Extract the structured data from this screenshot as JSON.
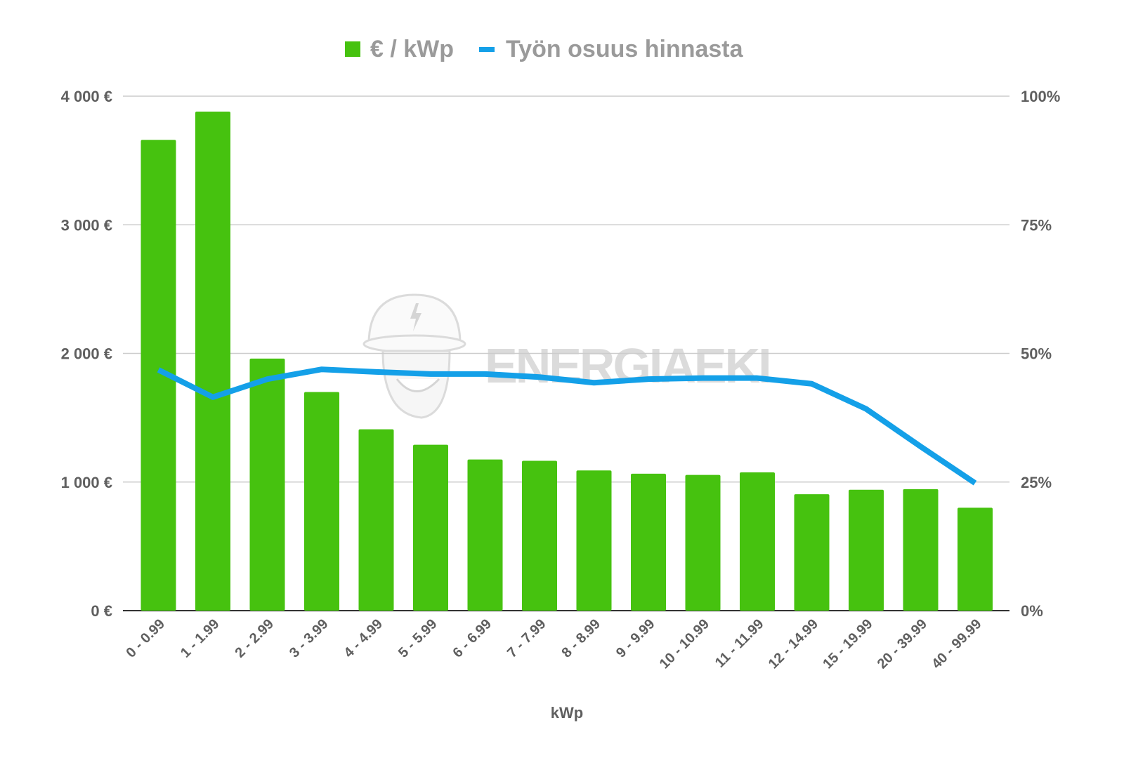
{
  "chart_data": {
    "type": "bar+line",
    "title": "",
    "xlabel": "kWp",
    "ylabel_left": "",
    "ylabel_right": "",
    "categories": [
      "0 - 0.99",
      "1 - 1.99",
      "2 - 2.99",
      "3 - 3.99",
      "4 - 4.99",
      "5 - 5.99",
      "6 - 6.99",
      "7 - 7.99",
      "8 - 8.99",
      "9 - 9.99",
      "10 - 10.99",
      "11 - 11.99",
      "12 - 14.99",
      "15 - 19.99",
      "20 - 39.99",
      "40 - 99.99"
    ],
    "series": [
      {
        "name": "€ / kWp",
        "type": "bar",
        "axis": "left",
        "color": "#46c20f",
        "values": [
          3660,
          3880,
          1960,
          1700,
          1410,
          1290,
          1175,
          1165,
          1090,
          1065,
          1055,
          1075,
          905,
          940,
          945,
          800
        ]
      },
      {
        "name": "Työn osuus hinnasta",
        "type": "line",
        "axis": "right",
        "color": "#14a0e8",
        "values": [
          46.8,
          41.5,
          45.0,
          46.9,
          46.4,
          46.0,
          46.0,
          45.4,
          44.3,
          45.0,
          45.2,
          45.2,
          44.1,
          39.2,
          31.9,
          24.8
        ]
      }
    ],
    "left_axis": {
      "ylim": [
        0,
        4000
      ],
      "ticks": [
        0,
        1000,
        2000,
        3000,
        4000
      ],
      "tick_labels": [
        "0 €",
        "1 000 €",
        "2 000 €",
        "3 000 €",
        "4 000 €"
      ]
    },
    "right_axis": {
      "ylim": [
        0,
        100
      ],
      "ticks": [
        0,
        25,
        50,
        75,
        100
      ],
      "tick_labels": [
        "0%",
        "25%",
        "50%",
        "75%",
        "100%"
      ]
    },
    "grid": true,
    "legend": "top-center",
    "watermark": "EnergiaEki"
  }
}
